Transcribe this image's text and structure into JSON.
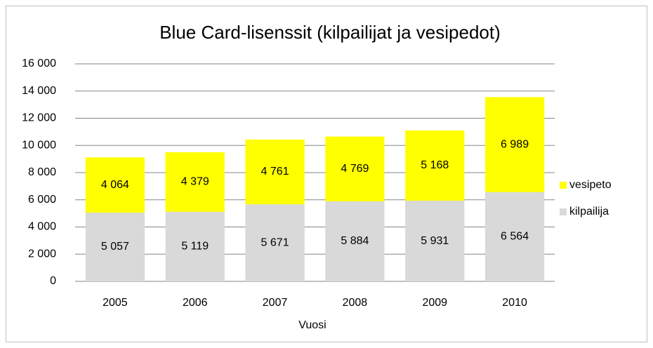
{
  "chart_data": {
    "type": "stacked_bar",
    "title": "Blue Card-lisenssit (kilpailijat ja vesipedot)",
    "x_label": "Vuosi",
    "categories": [
      "2005",
      "2006",
      "2007",
      "2008",
      "2009",
      "2010"
    ],
    "series": [
      {
        "name": "kilpailija",
        "color": "#d9d9d9",
        "values": [
          5057,
          5119,
          5671,
          5884,
          5931,
          6564
        ],
        "value_labels": [
          "5 057",
          "5 119",
          "5 671",
          "5 884",
          "5 931",
          "6 564"
        ]
      },
      {
        "name": "vesipeto",
        "color": "#ffff00",
        "values": [
          4064,
          4379,
          4761,
          4769,
          5168,
          6989
        ],
        "value_labels": [
          "4 064",
          "4 379",
          "4 761",
          "4 769",
          "5 168",
          "6 989"
        ]
      }
    ],
    "ylim": [
      0,
      16000
    ],
    "yticks": [
      0,
      {
        "value": 2000,
        "label": "2 000"
      },
      {
        "value": 4000,
        "label": "4 000"
      },
      {
        "value": 6000,
        "label": "6 000"
      },
      {
        "value": 8000,
        "label": "8 000"
      },
      {
        "value": 10000,
        "label": "10 000"
      },
      {
        "value": 12000,
        "label": "12 000"
      },
      {
        "value": 14000,
        "label": "14 000"
      },
      {
        "value": 16000,
        "label": "16 000"
      }
    ],
    "grid": true,
    "legend": "right"
  }
}
